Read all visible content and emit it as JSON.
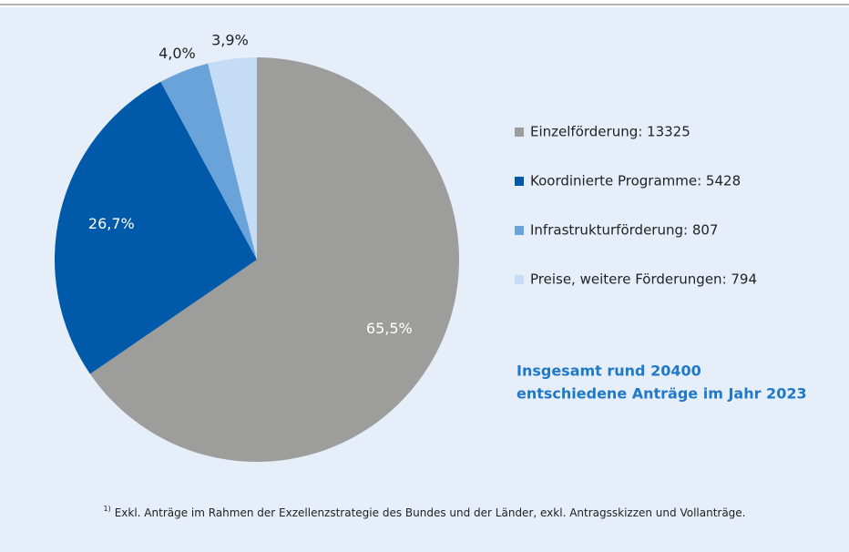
{
  "chart_data": {
    "type": "pie",
    "categories": [
      "Einzelförderung: 13325",
      "Koordinierte Programme: 5428",
      "Infrastrukturförderung: 807",
      "Preise, weitere Förderungen: 794"
    ],
    "values": [
      65.5,
      26.7,
      4.0,
      3.9
    ],
    "value_labels": [
      "65,5%",
      "26,7%",
      "4,0%",
      "3,9%"
    ],
    "colors": [
      "#9d9d9c",
      "#005aa9",
      "#6aa3d9",
      "#c5ddf4"
    ],
    "annotation": [
      "Insgesamt rund 20400",
      "entschiedene Anträge im Jahr 2023"
    ],
    "footnote_marker": "1)",
    "footnote": "Exkl. Anträge im Rahmen der Exzellenzstrategie des Bundes und der Länder, exkl. Antragsskizzen und Vollanträge."
  }
}
